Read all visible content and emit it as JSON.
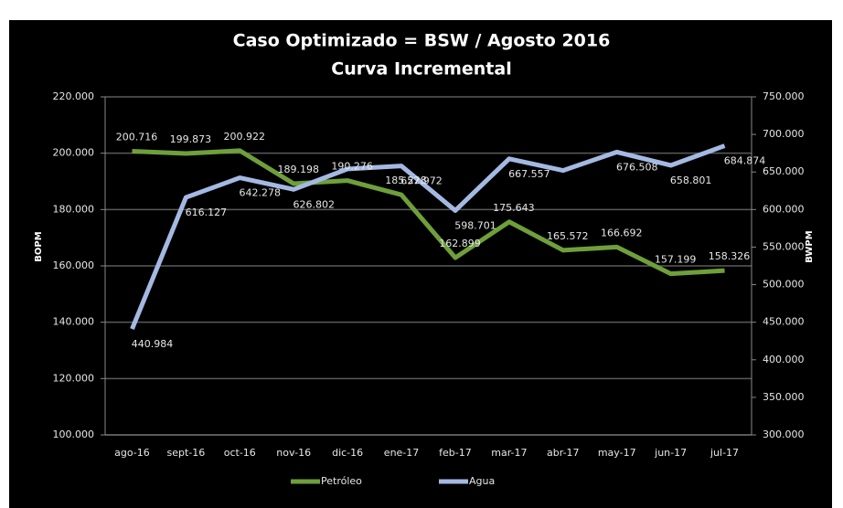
{
  "chart_data": {
    "type": "line",
    "title": "Caso Optimizado = BSW / Agosto 2016",
    "subtitle": "Curva Incremental",
    "ylabel": "BOPM",
    "y2label": "BWPM",
    "categories": [
      "ago-16",
      "sept-16",
      "oct-16",
      "nov-16",
      "dic-16",
      "ene-17",
      "feb-17",
      "mar-17",
      "abr-17",
      "may-17",
      "jun-17",
      "jul-17"
    ],
    "series": [
      {
        "name": "Petróleo",
        "color": "#6f9f3a",
        "axis": "y",
        "values": [
          200716,
          199873,
          200922,
          189198,
          190276,
          185228,
          162899,
          175643,
          165572,
          166692,
          157199,
          158326
        ],
        "value_labels": [
          "200.716",
          "199.873",
          "200.922",
          "189.198",
          "190.276",
          "185.228",
          "162.899",
          "175.643",
          "165.572",
          "166.692",
          "157.199",
          "158.326"
        ]
      },
      {
        "name": "Agua",
        "color": "#a4b9e2",
        "axis": "y2",
        "values": [
          440984,
          616127,
          642278,
          626802,
          654000,
          657972,
          598701,
          667557,
          652000,
          676508,
          658801,
          684874
        ],
        "value_labels": [
          "440.984",
          "616.127",
          "642.278",
          "626.802",
          null,
          "657.972",
          "598.701",
          "667.557",
          null,
          "676.508",
          "658.801",
          "684.874"
        ]
      }
    ],
    "ylim": [
      100000,
      220000
    ],
    "yticks": [
      {
        "value": 100000,
        "label": "100.000"
      },
      {
        "value": 120000,
        "label": "120.000"
      },
      {
        "value": 140000,
        "label": "140.000"
      },
      {
        "value": 160000,
        "label": "160.000"
      },
      {
        "value": 180000,
        "label": "180.000"
      },
      {
        "value": 200000,
        "label": "200.000"
      },
      {
        "value": 220000,
        "label": "220.000"
      }
    ],
    "y2lim": [
      300000,
      750000
    ],
    "y2ticks": [
      {
        "value": 300000,
        "label": "300.000"
      },
      {
        "value": 350000,
        "label": "350.000"
      },
      {
        "value": 400000,
        "label": "400.000"
      },
      {
        "value": 450000,
        "label": "450.000"
      },
      {
        "value": 500000,
        "label": "500.000"
      },
      {
        "value": 550000,
        "label": "550.000"
      },
      {
        "value": 600000,
        "label": "600.000"
      },
      {
        "value": 650000,
        "label": "650.000"
      },
      {
        "value": 700000,
        "label": "700.000"
      },
      {
        "value": 750000,
        "label": "750.000"
      }
    ],
    "grid": true,
    "legend": "bottom"
  }
}
